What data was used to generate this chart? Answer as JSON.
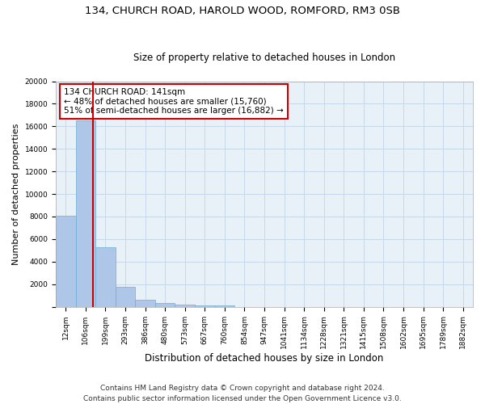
{
  "title_line1": "134, CHURCH ROAD, HAROLD WOOD, ROMFORD, RM3 0SB",
  "title_line2": "Size of property relative to detached houses in London",
  "xlabel": "Distribution of detached houses by size in London",
  "ylabel": "Number of detached properties",
  "categories": [
    "12sqm",
    "106sqm",
    "199sqm",
    "293sqm",
    "386sqm",
    "480sqm",
    "573sqm",
    "667sqm",
    "760sqm",
    "854sqm",
    "947sqm",
    "1041sqm",
    "1134sqm",
    "1228sqm",
    "1321sqm",
    "1415sqm",
    "1508sqm",
    "1602sqm",
    "1695sqm",
    "1789sqm",
    "1882sqm"
  ],
  "values": [
    8100,
    16500,
    5300,
    1750,
    620,
    320,
    185,
    135,
    125,
    0,
    0,
    0,
    0,
    0,
    0,
    0,
    0,
    0,
    0,
    0,
    0
  ],
  "bar_color": "#aec6e8",
  "bar_edge_color": "#6aaed6",
  "vline_color": "#cc0000",
  "annotation_text": "134 CHURCH ROAD: 141sqm\n← 48% of detached houses are smaller (15,760)\n51% of semi-detached houses are larger (16,882) →",
  "annotation_box_color": "#ffffff",
  "annotation_box_edge": "#cc0000",
  "ylim": [
    0,
    20000
  ],
  "yticks": [
    0,
    2000,
    4000,
    6000,
    8000,
    10000,
    12000,
    14000,
    16000,
    18000,
    20000
  ],
  "footer_line1": "Contains HM Land Registry data © Crown copyright and database right 2024.",
  "footer_line2": "Contains public sector information licensed under the Open Government Licence v3.0.",
  "bg_color": "#ffffff",
  "grid_color": "#c8d8e8",
  "title_fontsize": 9.5,
  "subtitle_fontsize": 8.5,
  "axis_label_fontsize": 8,
  "tick_fontsize": 6.5,
  "annotation_fontsize": 7.5,
  "footer_fontsize": 6.5
}
